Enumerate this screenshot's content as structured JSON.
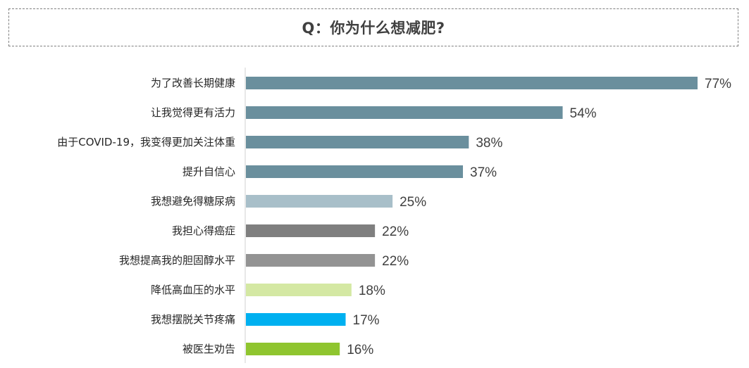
{
  "title": "Q：你为什么想减肥?",
  "chart_data": {
    "type": "bar",
    "orientation": "horizontal",
    "title": "Q：你为什么想减肥?",
    "categories": [
      "为了改善长期健康",
      "让我觉得更有活力",
      "由于COVID-19，我变得更加关注体重",
      "提升自信心",
      "我想避免得糖尿病",
      "我担心得癌症",
      "我想提高我的胆固醇水平",
      "降低高血压的水平",
      "我想摆脱关节疼痛",
      "被医生劝告"
    ],
    "values": [
      77,
      54,
      38,
      37,
      25,
      22,
      22,
      18,
      17,
      16
    ],
    "value_labels": [
      "77%",
      "54%",
      "38%",
      "37%",
      "25%",
      "22%",
      "22%",
      "18%",
      "17%",
      "16%"
    ],
    "colors": [
      "#6a8f9d",
      "#6a8f9d",
      "#6a8f9d",
      "#6a8f9d",
      "#a8bfc9",
      "#7f7f7f",
      "#939393",
      "#d4e8a3",
      "#00b0f0",
      "#8fc52f"
    ],
    "unit": "%",
    "xlim": [
      0,
      77
    ],
    "grid": false,
    "legend": "none"
  }
}
